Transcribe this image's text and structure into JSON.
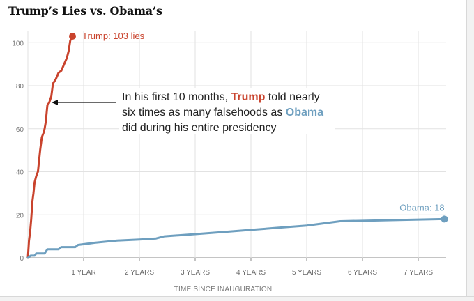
{
  "chart_data": {
    "type": "line",
    "title": "Trump’s Lies vs. Obama’s",
    "xlabel": "TIME SINCE INAUGURATION",
    "ylabel": "",
    "xlim": [
      0,
      7.5
    ],
    "ylim": [
      0,
      105
    ],
    "y_ticks": [
      0,
      20,
      40,
      60,
      80,
      100
    ],
    "x_ticks": [
      {
        "value": 1,
        "label": "1 YEAR"
      },
      {
        "value": 2,
        "label": "2 YEARS"
      },
      {
        "value": 3,
        "label": "3 YEARS"
      },
      {
        "value": 4,
        "label": "4 YEARS"
      },
      {
        "value": 5,
        "label": "5 YEARS"
      },
      {
        "value": 6,
        "label": "6 YEARS"
      },
      {
        "value": 7,
        "label": "7 YEARS"
      }
    ],
    "grid": true,
    "series": [
      {
        "name": "Trump",
        "color": "#c9432d",
        "end_label": "Trump: 103 lies",
        "points": [
          [
            0,
            0
          ],
          [
            0.02,
            8
          ],
          [
            0.04,
            12
          ],
          [
            0.06,
            18
          ],
          [
            0.08,
            26
          ],
          [
            0.1,
            30
          ],
          [
            0.12,
            35
          ],
          [
            0.15,
            38
          ],
          [
            0.18,
            40
          ],
          [
            0.2,
            45
          ],
          [
            0.22,
            50
          ],
          [
            0.25,
            56
          ],
          [
            0.28,
            58
          ],
          [
            0.3,
            60
          ],
          [
            0.32,
            63
          ],
          [
            0.35,
            71
          ],
          [
            0.38,
            72
          ],
          [
            0.42,
            75
          ],
          [
            0.45,
            81
          ],
          [
            0.5,
            83
          ],
          [
            0.55,
            86
          ],
          [
            0.6,
            87
          ],
          [
            0.65,
            90
          ],
          [
            0.7,
            93
          ],
          [
            0.73,
            96
          ],
          [
            0.76,
            101
          ],
          [
            0.8,
            103
          ]
        ]
      },
      {
        "name": "Obama",
        "color": "#6e9fbf",
        "end_label": "Obama: 18",
        "points": [
          [
            0,
            0
          ],
          [
            0.05,
            1
          ],
          [
            0.12,
            1
          ],
          [
            0.15,
            2
          ],
          [
            0.3,
            2
          ],
          [
            0.35,
            4
          ],
          [
            0.55,
            4
          ],
          [
            0.6,
            5
          ],
          [
            0.85,
            5
          ],
          [
            0.9,
            6
          ],
          [
            1.2,
            7
          ],
          [
            1.6,
            8
          ],
          [
            2.0,
            8.5
          ],
          [
            2.3,
            9
          ],
          [
            2.45,
            10
          ],
          [
            3.0,
            11
          ],
          [
            3.5,
            12
          ],
          [
            4.0,
            13
          ],
          [
            4.5,
            14
          ],
          [
            5.0,
            15
          ],
          [
            5.3,
            16
          ],
          [
            5.6,
            17
          ],
          [
            6.5,
            17.5
          ],
          [
            7.47,
            18
          ]
        ]
      }
    ],
    "annotation": {
      "line1_before": "In his first 10 months, ",
      "line1_highlight": "Trump",
      "line1_after": " told nearly",
      "line2_before": "six times as many falsehoods as ",
      "line2_highlight": "Obama",
      "line3": "did during his entire presidency",
      "arrow_target": [
        0.35,
        71
      ]
    },
    "colors": {
      "trump": "#c9432d",
      "obama": "#6e9fbf",
      "grid": "#e2e2e2",
      "axis": "#888888"
    }
  }
}
